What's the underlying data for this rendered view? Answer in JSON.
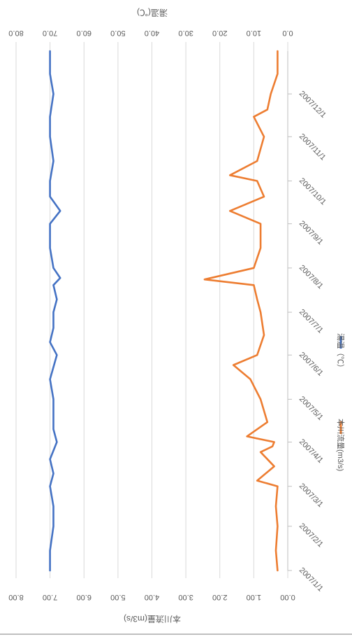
{
  "chart_data": {
    "type": "line",
    "orientation": "rotated-90-clockwise",
    "x": [
      "2007/1/1",
      "2007/2/1",
      "2007/3/1",
      "2007/4/1",
      "2007/5/1",
      "2007/6/1",
      "2007/7/1",
      "2007/8/1",
      "2007/9/1",
      "2007/10/1",
      "2007/11/1",
      "2007/12/1",
      "2007/12/31"
    ],
    "x_tick_labels": [
      "2007/1/1",
      "2007/2/1",
      "2007/3/1",
      "2007/4/1",
      "2007/5/1",
      "2007/6/1",
      "2007/7/1",
      "2007/8/1",
      "2007/9/1",
      "2007/10/1",
      "2007/11/1",
      "2007/12/1"
    ],
    "y_left": {
      "label": "本川流量(m3/s)",
      "lim": [
        0,
        8
      ],
      "ticks": [
        "0.00",
        "1.00",
        "2.00",
        "3.00",
        "4.00",
        "5.00",
        "6.00",
        "7.00",
        "8.00"
      ]
    },
    "y_right": {
      "label": "湯温(℃)",
      "lim": [
        0,
        80
      ],
      "ticks": [
        "0.0",
        "10.0",
        "20.0",
        "30.0",
        "40.0",
        "50.0",
        "60.0",
        "70.0",
        "80.0"
      ]
    },
    "series": [
      {
        "name": "本川流量(m3/s)",
        "axis": "left",
        "color": "#ED7D31",
        "x": [
          "2007/1/1",
          "2007/1/15",
          "2007/2/1",
          "2007/2/15",
          "2007/3/1",
          "2007/3/5",
          "2007/3/15",
          "2007/3/25",
          "2007/3/29",
          "2007/4/1",
          "2007/4/5",
          "2007/4/15",
          "2007/5/1",
          "2007/5/15",
          "2007/5/25",
          "2007/6/1",
          "2007/6/15",
          "2007/7/1",
          "2007/7/10",
          "2007/7/20",
          "2007/7/24",
          "2007/8/1",
          "2007/8/15",
          "2007/9/1",
          "2007/9/10",
          "2007/9/20",
          "2007/10/1",
          "2007/10/5",
          "2007/10/15",
          "2007/11/1",
          "2007/11/15",
          "2007/11/20",
          "2007/12/1",
          "2007/12/15",
          "2007/12/31"
        ],
        "values": [
          0.3,
          0.35,
          0.3,
          0.35,
          0.3,
          0.9,
          0.4,
          0.8,
          0.45,
          0.4,
          1.2,
          0.6,
          0.8,
          1.1,
          1.6,
          0.9,
          0.7,
          0.8,
          0.9,
          1.0,
          2.45,
          1.0,
          0.8,
          0.8,
          1.7,
          0.7,
          0.9,
          1.7,
          0.9,
          0.7,
          1.0,
          0.6,
          0.5,
          0.3,
          0.3
        ]
      },
      {
        "name": "湯温（℃）",
        "axis": "right",
        "color": "#4472C4",
        "x": [
          "2007/1/1",
          "2007/1/15",
          "2007/2/1",
          "2007/2/15",
          "2007/3/1",
          "2007/3/10",
          "2007/3/20",
          "2007/4/1",
          "2007/4/10",
          "2007/5/1",
          "2007/5/15",
          "2007/6/1",
          "2007/6/10",
          "2007/6/20",
          "2007/7/1",
          "2007/7/10",
          "2007/7/20",
          "2007/7/25",
          "2007/8/1",
          "2007/8/15",
          "2007/9/1",
          "2007/9/10",
          "2007/9/20",
          "2007/10/1",
          "2007/10/15",
          "2007/11/1",
          "2007/11/15",
          "2007/12/1",
          "2007/12/15",
          "2007/12/31"
        ],
        "values": [
          70,
          70,
          69,
          69,
          70,
          69,
          70,
          68,
          69,
          69,
          70,
          68,
          70,
          69,
          69,
          68,
          69,
          67,
          69,
          70,
          70,
          67,
          70,
          70,
          69,
          70,
          70,
          69,
          70,
          70
        ]
      }
    ],
    "grid": true,
    "legend": "bottom"
  }
}
